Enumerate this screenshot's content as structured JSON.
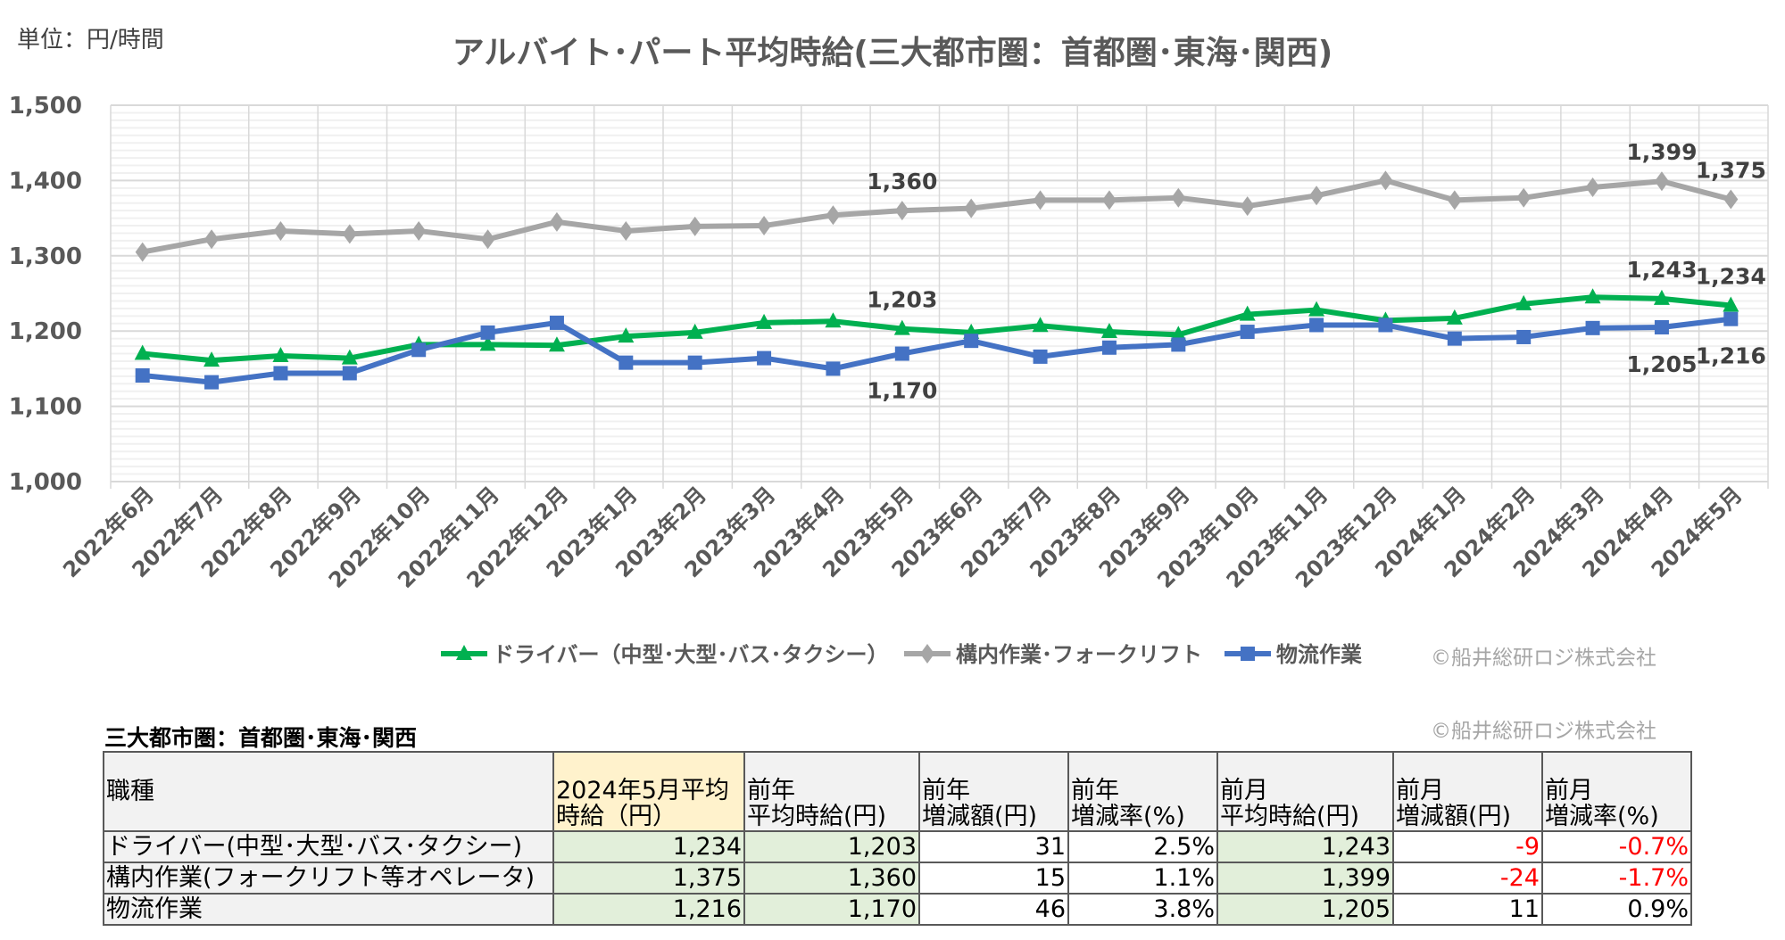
{
  "unit_label": "単位：円/時間",
  "copyright": "©船井総研ロジ株式会社",
  "chart_data": {
    "type": "line",
    "title": "アルバイト･パート平均時給(三大都市圏：首都圏･東海･関西)",
    "xlabel": "",
    "ylabel": "",
    "ylim": [
      1000,
      1500
    ],
    "yticks": [
      1000,
      1100,
      1200,
      1300,
      1400,
      1500
    ],
    "ytick_labels": [
      "1,000",
      "1,100",
      "1,200",
      "1,300",
      "1,400",
      "1,500"
    ],
    "grid": true,
    "legend_position": "bottom",
    "categories": [
      "2022年6月",
      "2022年7月",
      "2022年8月",
      "2022年9月",
      "2022年10月",
      "2022年11月",
      "2022年12月",
      "2023年1月",
      "2023年2月",
      "2023年3月",
      "2023年4月",
      "2023年5月",
      "2023年6月",
      "2023年7月",
      "2023年8月",
      "2023年9月",
      "2023年10月",
      "2023年11月",
      "2023年12月",
      "2024年1月",
      "2024年2月",
      "2024年3月",
      "2024年4月",
      "2024年5月"
    ],
    "series": [
      {
        "name": "ドライバー（中型･大型･バス･タクシー）",
        "color": "#00b050",
        "marker": "triangle",
        "values": [
          1170,
          1161,
          1167,
          1164,
          1182,
          1182,
          1181,
          1193,
          1198,
          1211,
          1213,
          1203,
          1198,
          1207,
          1199,
          1195,
          1222,
          1228,
          1214,
          1217,
          1236,
          1245,
          1243,
          1234
        ]
      },
      {
        "name": "構内作業･フォークリフト",
        "color": "#a6a6a6",
        "marker": "diamond",
        "values": [
          1305,
          1322,
          1333,
          1329,
          1333,
          1322,
          1345,
          1333,
          1339,
          1340,
          1354,
          1360,
          1363,
          1374,
          1374,
          1377,
          1366,
          1380,
          1400,
          1374,
          1377,
          1391,
          1399,
          1375
        ]
      },
      {
        "name": "物流作業",
        "color": "#4472c4",
        "marker": "square",
        "values": [
          1141,
          1132,
          1144,
          1144,
          1175,
          1198,
          1211,
          1158,
          1158,
          1164,
          1150,
          1170,
          1187,
          1166,
          1178,
          1182,
          1199,
          1208,
          1208,
          1190,
          1192,
          1204,
          1205,
          1216
        ]
      }
    ],
    "data_labels": [
      {
        "series": 1,
        "index": 11,
        "text": "1,360"
      },
      {
        "series": 1,
        "index": 22,
        "text": "1,399"
      },
      {
        "series": 1,
        "index": 23,
        "text": "1,375"
      },
      {
        "series": 0,
        "index": 11,
        "text": "1,203"
      },
      {
        "series": 0,
        "index": 22,
        "text": "1,243"
      },
      {
        "series": 0,
        "index": 23,
        "text": "1,234"
      },
      {
        "series": 2,
        "index": 11,
        "text": "1,170"
      },
      {
        "series": 2,
        "index": 22,
        "text": "1,205"
      },
      {
        "series": 2,
        "index": 23,
        "text": "1,216"
      }
    ]
  },
  "table": {
    "title": "三大都市圏：首都圏･東海･関西",
    "headers": [
      [
        "職種"
      ],
      [
        "2024年5月平均",
        "時給（円）"
      ],
      [
        "前年",
        "平均時給(円)"
      ],
      [
        "前年",
        "増減額(円)"
      ],
      [
        "前年",
        "増減率(%)"
      ],
      [
        "前月",
        "平均時給(円)"
      ],
      [
        "前月",
        "増減額(円)"
      ],
      [
        "前月",
        "増減率(%)"
      ]
    ],
    "rows": [
      [
        "ドライバー(中型･大型･バス･タクシー)",
        "1,234",
        "1,203",
        "31",
        "2.5%",
        "1,243",
        "-9",
        "-0.7%"
      ],
      [
        "構内作業(フォークリフト等オペレータ)",
        "1,375",
        "1,360",
        "15",
        "1.1%",
        "1,399",
        "-24",
        "-1.7%"
      ],
      [
        "物流作業",
        "1,216",
        "1,170",
        "46",
        "3.8%",
        "1,205",
        "11",
        "0.9%"
      ]
    ]
  }
}
